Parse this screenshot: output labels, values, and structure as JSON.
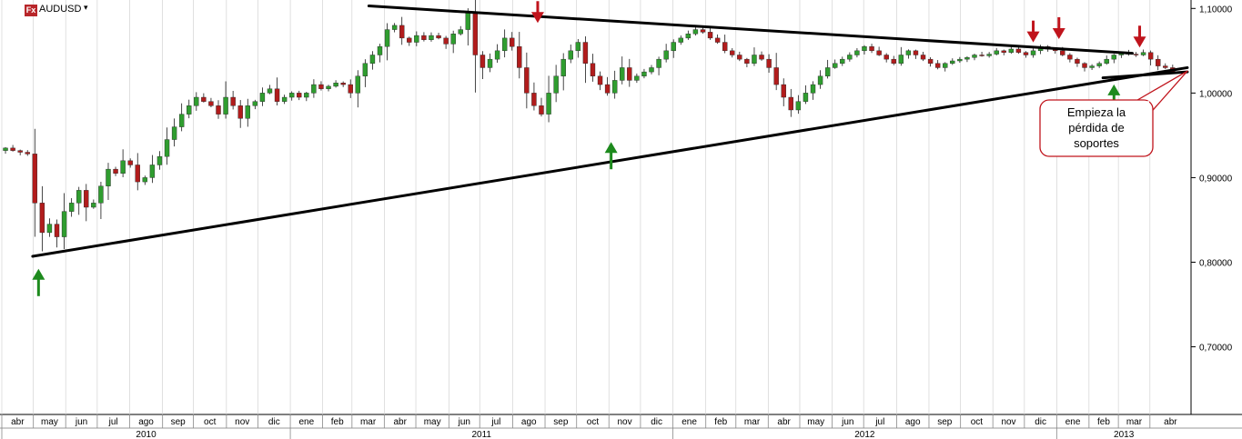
{
  "header": {
    "symbol_badge": "Fx",
    "symbol": "AUDUSD",
    "caret": "▾"
  },
  "annotation": {
    "lines": [
      "Empieza la",
      "pérdida de",
      "soportes"
    ]
  },
  "colors": {
    "bull": "#2f9d2f",
    "bear": "#b11c1c",
    "wick": "#1a1a1a",
    "trendline": "#000000",
    "up_arrow": "#1d8a1d",
    "down_arrow": "#c0141c",
    "callout_border": "#c0141c",
    "grid": "#cccccc"
  },
  "chart_data": {
    "type": "candlestick",
    "timeframe": "weekly",
    "symbol": "AUDUSD",
    "ylim": [
      0.62,
      1.11
    ],
    "yticks": [
      "1,10000",
      "1,00000",
      "0,90000",
      "0,80000",
      "0,70000"
    ],
    "ytick_values": [
      1.1,
      1.0,
      0.9,
      0.8,
      0.7
    ],
    "x_range_weeks": [
      0,
      162
    ],
    "months": [
      {
        "label": "abr",
        "start": 0
      },
      {
        "label": "may",
        "start": 4.3
      },
      {
        "label": "jun",
        "start": 8.7
      },
      {
        "label": "jul",
        "start": 13.0
      },
      {
        "label": "ago",
        "start": 17.4
      },
      {
        "label": "sep",
        "start": 21.9
      },
      {
        "label": "oct",
        "start": 26.1
      },
      {
        "label": "nov",
        "start": 30.6
      },
      {
        "label": "dic",
        "start": 34.9
      },
      {
        "label": "ene",
        "start": 39.3
      },
      {
        "label": "feb",
        "start": 43.7
      },
      {
        "label": "mar",
        "start": 47.7
      },
      {
        "label": "abr",
        "start": 52.1
      },
      {
        "label": "may",
        "start": 56.4
      },
      {
        "label": "jun",
        "start": 60.9
      },
      {
        "label": "jul",
        "start": 65.1
      },
      {
        "label": "ago",
        "start": 69.6
      },
      {
        "label": "sep",
        "start": 74.0
      },
      {
        "label": "oct",
        "start": 78.3
      },
      {
        "label": "nov",
        "start": 82.7
      },
      {
        "label": "dic",
        "start": 87.0
      },
      {
        "label": "ene",
        "start": 91.4
      },
      {
        "label": "feb",
        "start": 95.9
      },
      {
        "label": "mar",
        "start": 100.0
      },
      {
        "label": "abr",
        "start": 104.4
      },
      {
        "label": "may",
        "start": 108.7
      },
      {
        "label": "jun",
        "start": 113.1
      },
      {
        "label": "jul",
        "start": 117.4
      },
      {
        "label": "ago",
        "start": 121.9
      },
      {
        "label": "sep",
        "start": 126.3
      },
      {
        "label": "oct",
        "start": 130.6
      },
      {
        "label": "nov",
        "start": 135.0
      },
      {
        "label": "dic",
        "start": 139.3
      },
      {
        "label": "ene",
        "start": 143.7
      },
      {
        "label": "feb",
        "start": 148.1
      },
      {
        "label": "mar",
        "start": 152.1
      },
      {
        "label": "abr",
        "start": 156.4
      }
    ],
    "years": [
      {
        "label": "2010",
        "start": 0,
        "end": 39.3
      },
      {
        "label": "2011",
        "start": 39.3,
        "end": 91.4
      },
      {
        "label": "2012",
        "start": 91.4,
        "end": 143.7
      },
      {
        "label": "2013",
        "start": 143.7,
        "end": 162
      }
    ],
    "closes": [
      0.935,
      0.932,
      0.93,
      0.928,
      0.87,
      0.835,
      0.845,
      0.83,
      0.86,
      0.87,
      0.885,
      0.865,
      0.87,
      0.89,
      0.91,
      0.905,
      0.92,
      0.915,
      0.895,
      0.9,
      0.915,
      0.925,
      0.945,
      0.96,
      0.975,
      0.985,
      0.995,
      0.99,
      0.985,
      0.975,
      0.995,
      0.985,
      0.97,
      0.985,
      0.99,
      1.0,
      1.005,
      0.99,
      0.995,
      1.0,
      0.995,
      1.0,
      1.01,
      1.005,
      1.008,
      1.012,
      1.01,
      1.0,
      1.02,
      1.035,
      1.045,
      1.055,
      1.075,
      1.08,
      1.065,
      1.06,
      1.068,
      1.063,
      1.068,
      1.065,
      1.058,
      1.07,
      1.075,
      1.095,
      1.045,
      1.03,
      1.04,
      1.05,
      1.065,
      1.055,
      1.03,
      1.0,
      0.985,
      0.975,
      1.0,
      1.02,
      1.04,
      1.05,
      1.06,
      1.035,
      1.02,
      1.01,
      1.0,
      1.015,
      1.03,
      1.015,
      1.02,
      1.025,
      1.03,
      1.04,
      1.05,
      1.06,
      1.065,
      1.07,
      1.075,
      1.072,
      1.065,
      1.06,
      1.05,
      1.045,
      1.04,
      1.035,
      1.045,
      1.04,
      1.03,
      1.01,
      0.995,
      0.98,
      0.99,
      1.0,
      1.01,
      1.02,
      1.03,
      1.035,
      1.04,
      1.045,
      1.05,
      1.055,
      1.05,
      1.045,
      1.04,
      1.035,
      1.045,
      1.05,
      1.045,
      1.04,
      1.035,
      1.03,
      1.035,
      1.038,
      1.04,
      1.042,
      1.045,
      1.044,
      1.046,
      1.05,
      1.048,
      1.052,
      1.048,
      1.045,
      1.05,
      1.055,
      1.052,
      1.05,
      1.045,
      1.04,
      1.035,
      1.03,
      1.032,
      1.035,
      1.04,
      1.045,
      1.048,
      1.046,
      1.045,
      1.048,
      1.04,
      1.032,
      1.03,
      1.025
    ],
    "trendlines": [
      {
        "name": "support",
        "points": [
          [
            4.2,
            0.807
          ],
          [
            161.5,
            1.03
          ]
        ]
      },
      {
        "name": "resistance",
        "points": [
          [
            50.0,
            1.103
          ],
          [
            154.0,
            1.047
          ]
        ]
      },
      {
        "name": "break",
        "points": [
          [
            150.0,
            1.018
          ],
          [
            161.5,
            1.025
          ]
        ]
      }
    ],
    "up_arrows": [
      {
        "x": 5.0,
        "price": 0.79
      },
      {
        "x": 83.0,
        "price": 0.94
      },
      {
        "x": 151.5,
        "price": 1.008
      }
    ],
    "down_arrows": [
      {
        "x": 73.0,
        "price": 1.085
      },
      {
        "x": 140.5,
        "price": 1.062
      },
      {
        "x": 144.0,
        "price": 1.066
      },
      {
        "x": 155.0,
        "price": 1.056
      }
    ],
    "callout": {
      "anchor": [
        161.5,
        1.026
      ],
      "text_lines": [
        "Empieza la",
        "pérdida de",
        "soportes"
      ]
    }
  }
}
